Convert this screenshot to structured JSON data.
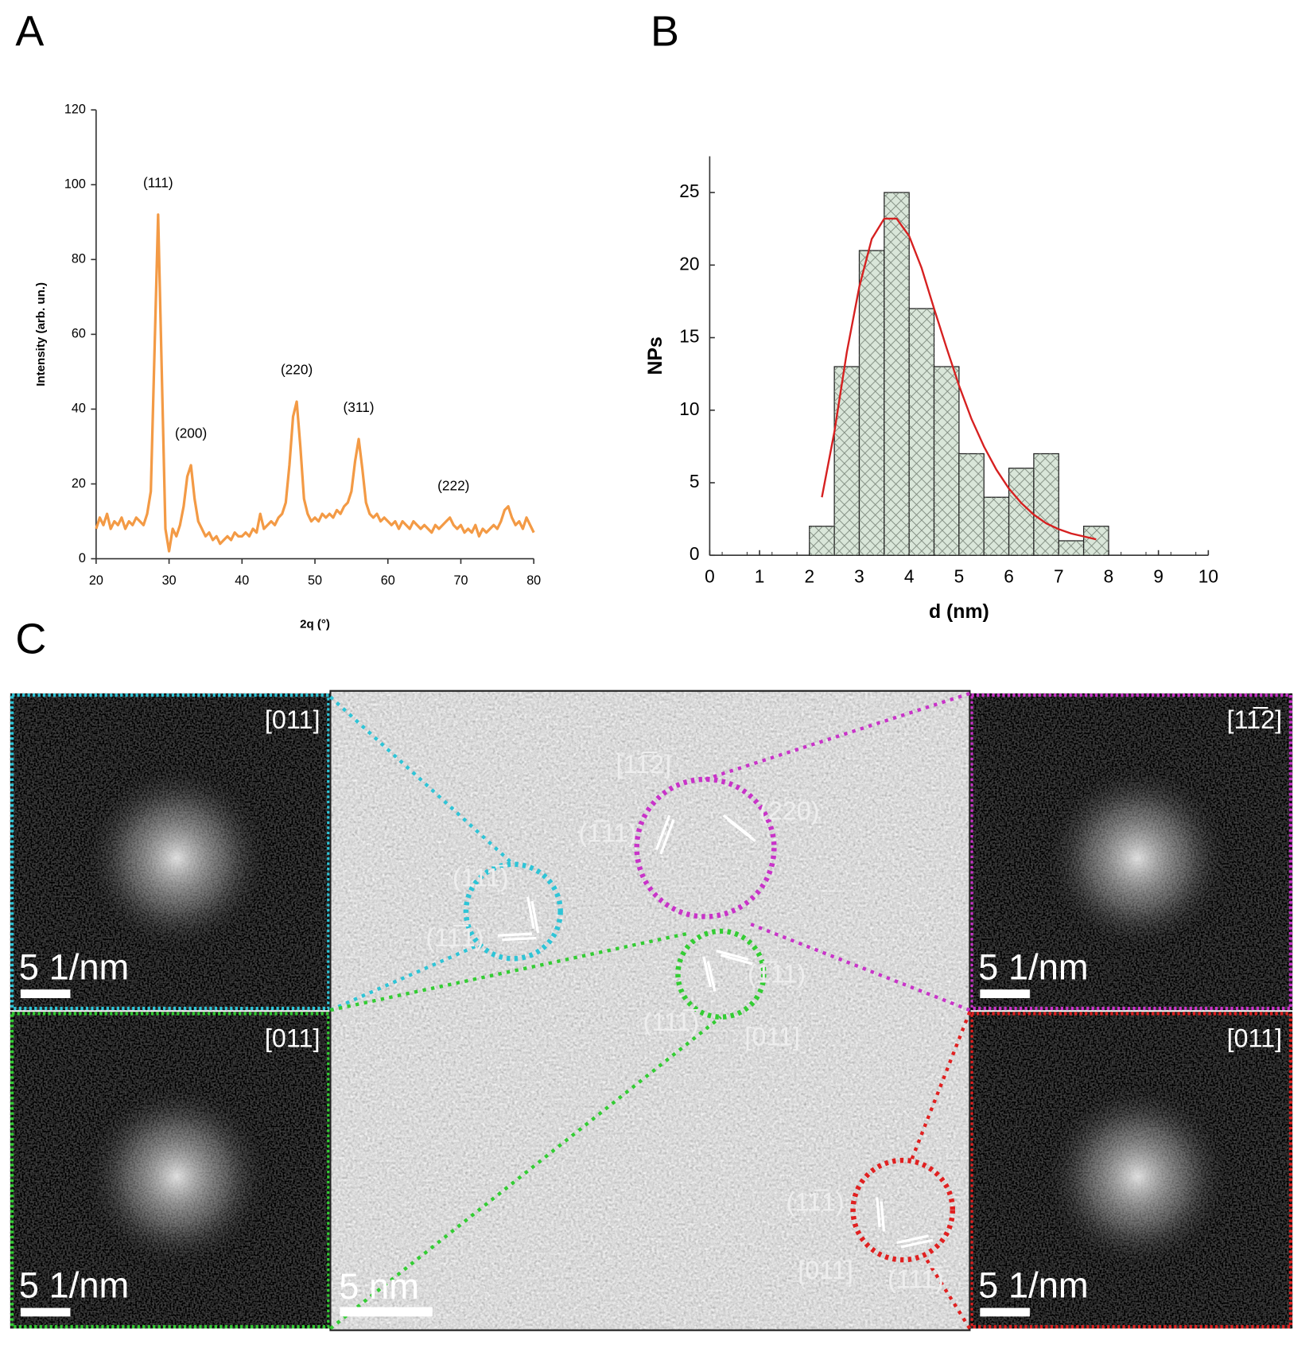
{
  "panels": {
    "a": "A",
    "b": "B",
    "c": "C"
  },
  "chart_data": [
    {
      "type": "line",
      "xlabel": "2q (°)",
      "ylabel": "Intensity (arb. un.)",
      "color": "#f39a45",
      "xlim": [
        20,
        80
      ],
      "xticks": [
        20,
        30,
        40,
        50,
        60,
        70,
        80
      ],
      "ylim": [
        0,
        120
      ],
      "yticks": [
        0,
        20,
        40,
        60,
        80,
        100,
        120
      ],
      "x": [
        20,
        20.5,
        21,
        21.5,
        22,
        22.5,
        23,
        23.5,
        24,
        24.5,
        25,
        25.5,
        26,
        26.5,
        27,
        27.5,
        28,
        28.5,
        29,
        29.5,
        30,
        30.5,
        31,
        31.5,
        32,
        32.5,
        33,
        33.5,
        34,
        34.5,
        35,
        35.5,
        36,
        36.5,
        37,
        37.5,
        38,
        38.5,
        39,
        39.5,
        40,
        40.5,
        41,
        41.5,
        42,
        42.5,
        43,
        43.5,
        44,
        44.5,
        45,
        45.5,
        46,
        46.5,
        47,
        47.5,
        48,
        48.5,
        49,
        49.5,
        50,
        50.5,
        51,
        51.5,
        52,
        52.5,
        53,
        53.5,
        54,
        54.5,
        55,
        55.5,
        56,
        56.5,
        57,
        57.5,
        58,
        58.5,
        59,
        59.5,
        60,
        60.5,
        61,
        61.5,
        62,
        62.5,
        63,
        63.5,
        64,
        64.5,
        65,
        65.5,
        66,
        66.5,
        67,
        67.5,
        68,
        68.5,
        69,
        69.5,
        70,
        70.5,
        71,
        71.5,
        72,
        72.5,
        73,
        73.5,
        74,
        74.5,
        75,
        75.5,
        76,
        76.5,
        77,
        77.5,
        78,
        78.5,
        79,
        79.5,
        80
      ],
      "values": [
        8,
        11,
        9,
        12,
        8,
        10,
        9,
        11,
        8,
        10,
        9,
        11,
        10,
        9,
        12,
        18,
        55,
        92,
        50,
        8,
        2,
        8,
        6,
        9,
        14,
        22,
        25,
        16,
        10,
        8,
        6,
        7,
        5,
        6,
        4,
        5,
        6,
        5,
        7,
        6,
        6,
        7,
        6,
        8,
        7,
        12,
        8,
        9,
        10,
        9,
        11,
        12,
        15,
        25,
        38,
        42,
        30,
        16,
        12,
        10,
        11,
        10,
        12,
        11,
        12,
        11,
        13,
        12,
        14,
        15,
        18,
        26,
        32,
        24,
        15,
        12,
        11,
        12,
        10,
        11,
        10,
        9,
        10,
        8,
        10,
        9,
        8,
        10,
        9,
        8,
        9,
        8,
        7,
        9,
        8,
        9,
        10,
        11,
        9,
        8,
        9,
        7,
        8,
        7,
        9,
        6,
        8,
        7,
        8,
        9,
        8,
        10,
        13,
        14,
        11,
        9,
        10,
        8,
        11,
        9,
        7
      ],
      "annotations": [
        {
          "text": "(111)",
          "x": 28.5,
          "y": 92
        },
        {
          "text": "(200)",
          "x": 33,
          "y": 25
        },
        {
          "text": "(220)",
          "x": 47.5,
          "y": 42
        },
        {
          "text": "(311)",
          "x": 56,
          "y": 32
        },
        {
          "text": "(222)",
          "x": 69,
          "y": 11
        }
      ]
    },
    {
      "type": "histogram",
      "xlabel": "d (nm)",
      "ylabel": "NPs",
      "color": "#d9e6d9",
      "xlim": [
        0,
        10
      ],
      "xticks": [
        0,
        1,
        2,
        3,
        4,
        5,
        6,
        7,
        8,
        9,
        10
      ],
      "ylim": [
        0,
        27.5
      ],
      "yticks": [
        0,
        5,
        10,
        15,
        20,
        25
      ],
      "bins": [
        2,
        2.5,
        3,
        3.5,
        4,
        4.5,
        5,
        5.5,
        6,
        6.5,
        7,
        7.5,
        8
      ],
      "values": [
        2,
        13,
        21,
        25,
        17,
        13,
        7,
        4,
        6,
        7,
        1,
        2
      ],
      "fit": {
        "color": "#d62020",
        "x": [
          2.25,
          2.5,
          2.75,
          3,
          3.25,
          3.5,
          3.75,
          4,
          4.25,
          4.5,
          4.75,
          5,
          5.25,
          5.5,
          5.75,
          6,
          6.25,
          6.5,
          6.75,
          7,
          7.25,
          7.5,
          7.75
        ],
        "values": [
          4,
          8.5,
          14,
          18.5,
          21.8,
          23.2,
          23.2,
          22,
          19.8,
          17,
          14.3,
          11.7,
          9.4,
          7.5,
          5.9,
          4.6,
          3.6,
          2.8,
          2.2,
          1.8,
          1.5,
          1.3,
          1.1
        ]
      }
    }
  ],
  "tem": {
    "fft": [
      {
        "zone": "[011]",
        "scale": "5 1/nm"
      },
      {
        "zone": "[011]",
        "scale": "5 1/nm"
      },
      {
        "zone": "[11̅2]",
        "scale": "5 1/nm"
      },
      {
        "zone": "[011]",
        "scale": "5 1/nm"
      }
    ],
    "scale": "5 nm",
    "labels": [
      "[11̅2]",
      "(1̅11)",
      "(220)",
      "(111̅)",
      "(11̅1)",
      "(1̅11)",
      "(111̅)",
      "[011]",
      "(11̅1)",
      "[011]",
      "(111̅)"
    ]
  }
}
